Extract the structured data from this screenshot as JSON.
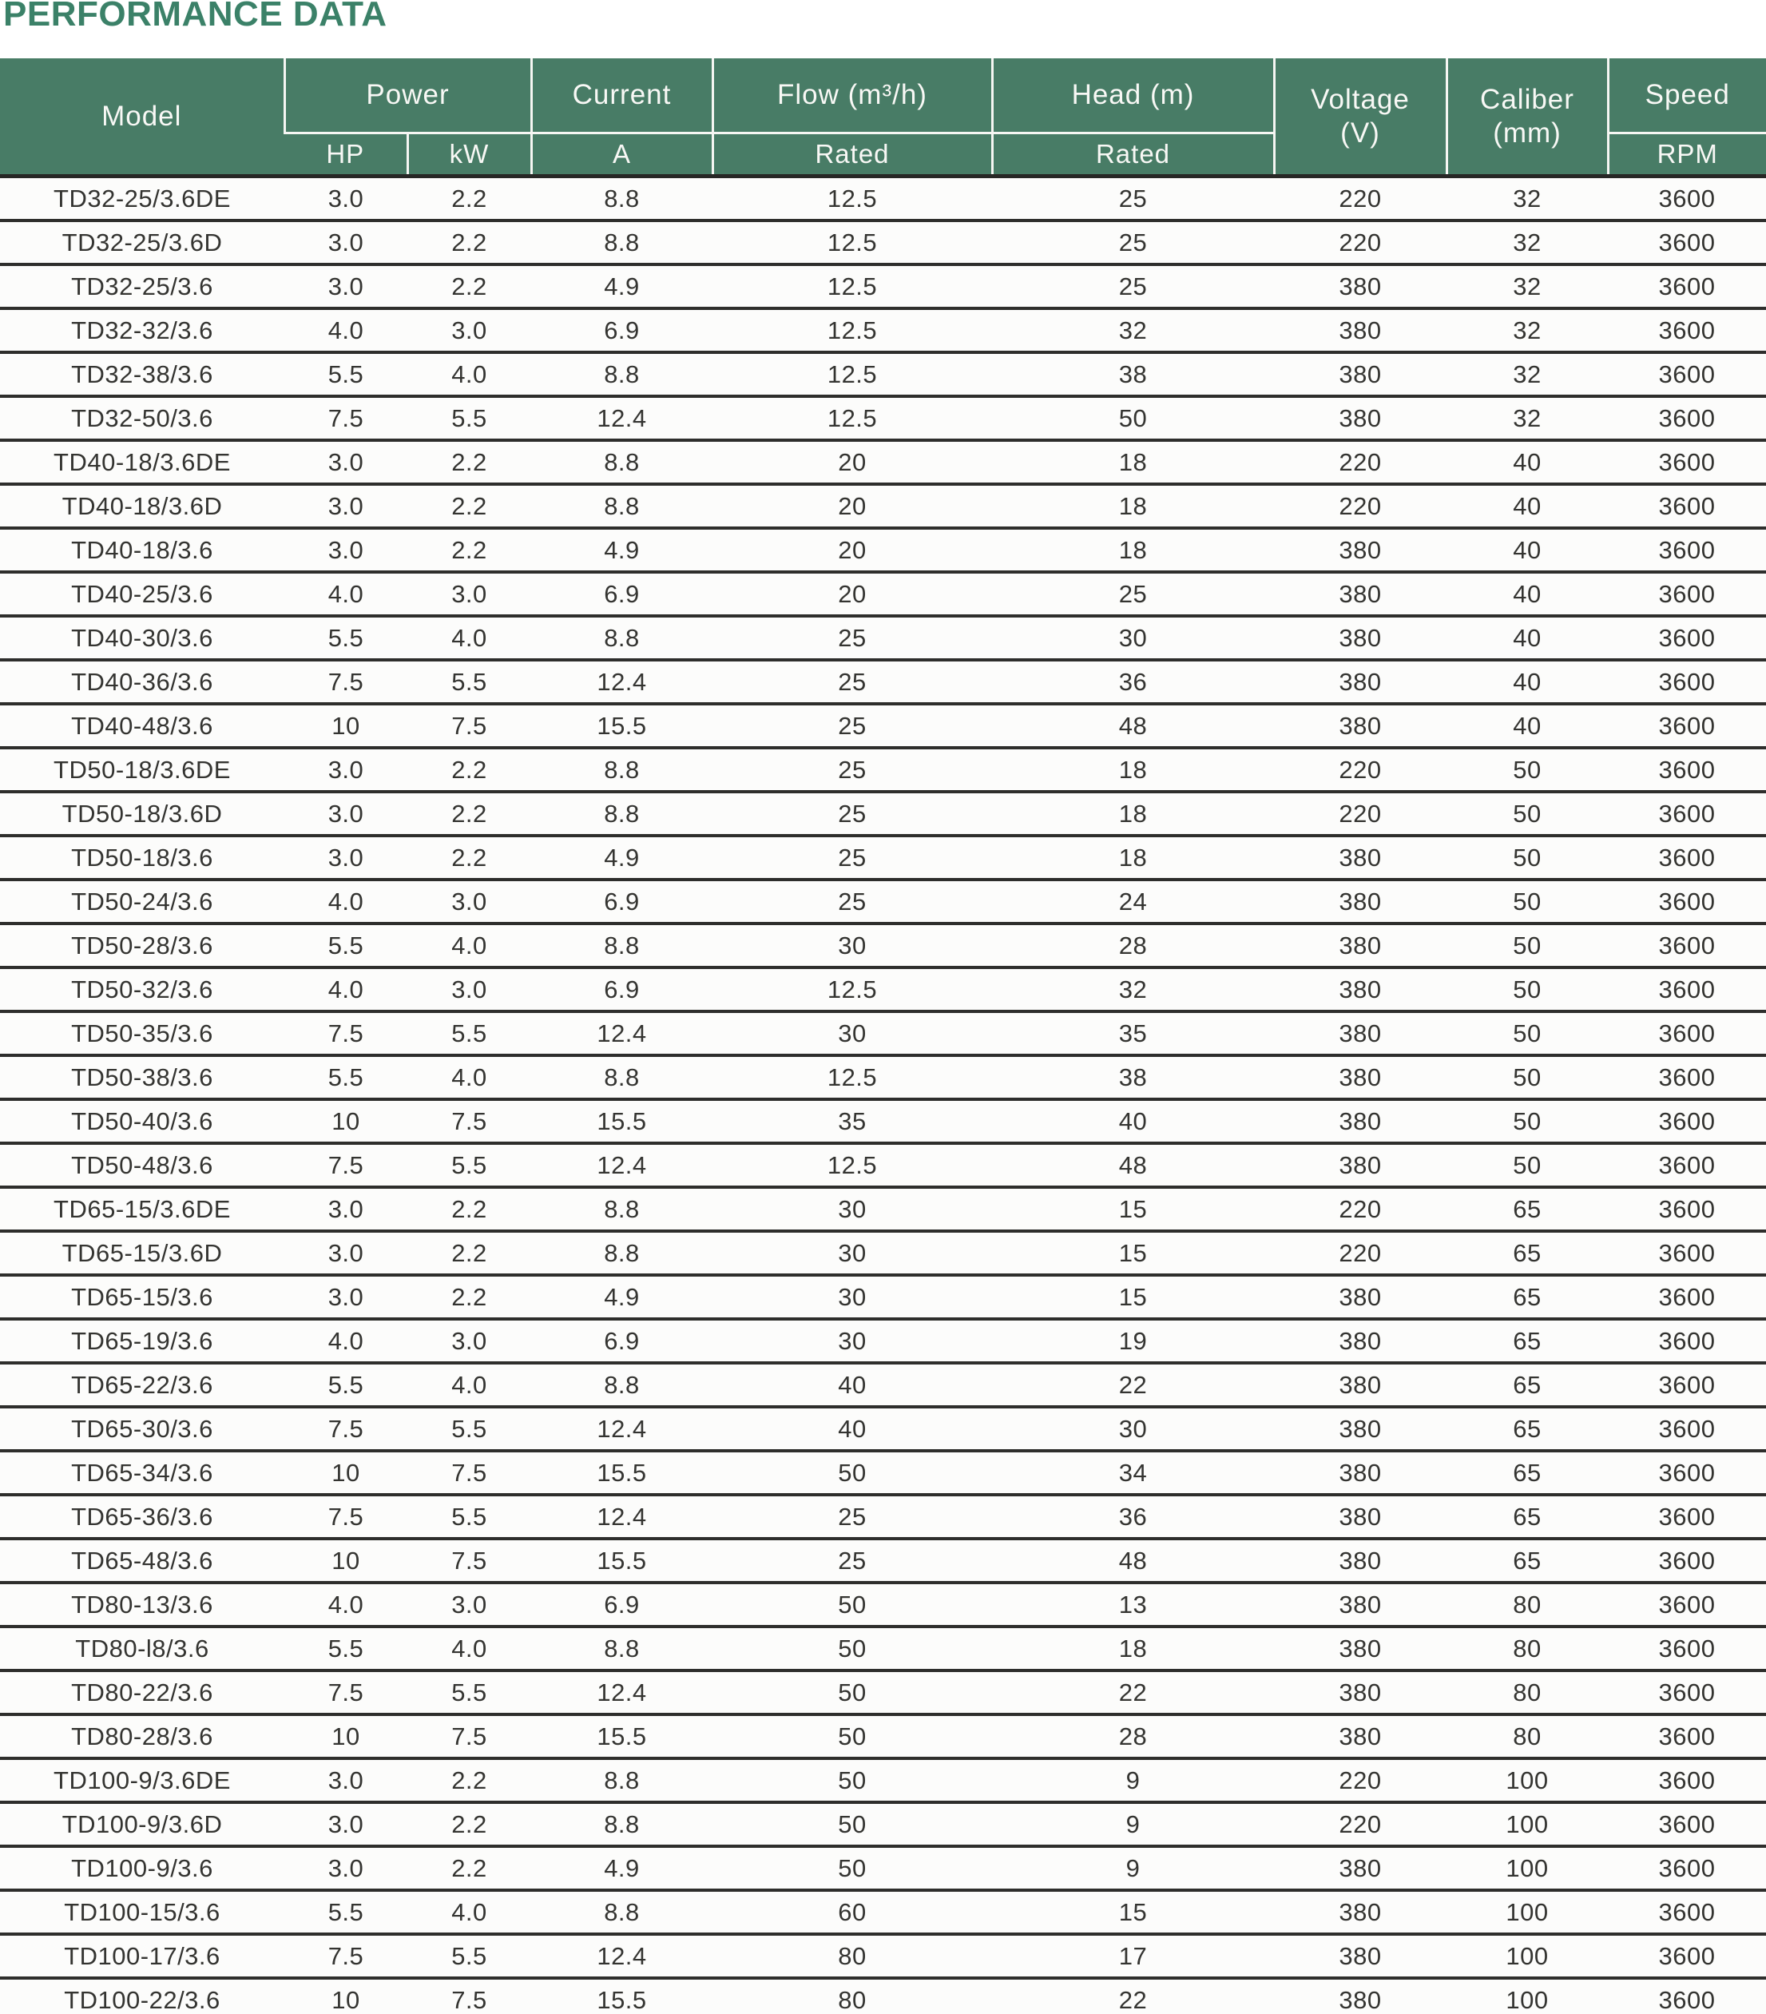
{
  "page": {
    "title": "PERFORMANCE DATA"
  },
  "colors": {
    "header_green": "#487c66",
    "title_green": "#3b8168",
    "row_divider_dark": "#2e2e2c",
    "header_text": "#f8f8f5",
    "body_text": "#343431"
  },
  "table": {
    "header": {
      "model": "Model",
      "power": "Power",
      "power_hp": "HP",
      "power_kw": "kW",
      "current": "Current",
      "current_a": "A",
      "flow": "Flow (m³/h)",
      "flow_rated": "Rated",
      "head": "Head (m)",
      "head_rated": "Rated",
      "voltage_line1": "Voltage",
      "voltage_line2": "(V)",
      "caliber_line1": "Caliber",
      "caliber_line2": "(mm)",
      "speed": "Speed",
      "speed_rpm": "RPM"
    },
    "columns": [
      "Model",
      "Power HP",
      "Power kW",
      "Current A",
      "Flow (m³/h) Rated",
      "Head (m) Rated",
      "Voltage (V)",
      "Caliber (mm)",
      "Speed RPM"
    ],
    "rows": [
      [
        "TD32-25/3.6DE",
        "3.0",
        "2.2",
        "8.8",
        "12.5",
        "25",
        "220",
        "32",
        "3600"
      ],
      [
        "TD32-25/3.6D",
        "3.0",
        "2.2",
        "8.8",
        "12.5",
        "25",
        "220",
        "32",
        "3600"
      ],
      [
        "TD32-25/3.6",
        "3.0",
        "2.2",
        "4.9",
        "12.5",
        "25",
        "380",
        "32",
        "3600"
      ],
      [
        "TD32-32/3.6",
        "4.0",
        "3.0",
        "6.9",
        "12.5",
        "32",
        "380",
        "32",
        "3600"
      ],
      [
        "TD32-38/3.6",
        "5.5",
        "4.0",
        "8.8",
        "12.5",
        "38",
        "380",
        "32",
        "3600"
      ],
      [
        "TD32-50/3.6",
        "7.5",
        "5.5",
        "12.4",
        "12.5",
        "50",
        "380",
        "32",
        "3600"
      ],
      [
        "TD40-18/3.6DE",
        "3.0",
        "2.2",
        "8.8",
        "20",
        "18",
        "220",
        "40",
        "3600"
      ],
      [
        "TD40-18/3.6D",
        "3.0",
        "2.2",
        "8.8",
        "20",
        "18",
        "220",
        "40",
        "3600"
      ],
      [
        "TD40-18/3.6",
        "3.0",
        "2.2",
        "4.9",
        "20",
        "18",
        "380",
        "40",
        "3600"
      ],
      [
        "TD40-25/3.6",
        "4.0",
        "3.0",
        "6.9",
        "20",
        "25",
        "380",
        "40",
        "3600"
      ],
      [
        "TD40-30/3.6",
        "5.5",
        "4.0",
        "8.8",
        "25",
        "30",
        "380",
        "40",
        "3600"
      ],
      [
        "TD40-36/3.6",
        "7.5",
        "5.5",
        "12.4",
        "25",
        "36",
        "380",
        "40",
        "3600"
      ],
      [
        "TD40-48/3.6",
        "10",
        "7.5",
        "15.5",
        "25",
        "48",
        "380",
        "40",
        "3600"
      ],
      [
        "TD50-18/3.6DE",
        "3.0",
        "2.2",
        "8.8",
        "25",
        "18",
        "220",
        "50",
        "3600"
      ],
      [
        "TD50-18/3.6D",
        "3.0",
        "2.2",
        "8.8",
        "25",
        "18",
        "220",
        "50",
        "3600"
      ],
      [
        "TD50-18/3.6",
        "3.0",
        "2.2",
        "4.9",
        "25",
        "18",
        "380",
        "50",
        "3600"
      ],
      [
        "TD50-24/3.6",
        "4.0",
        "3.0",
        "6.9",
        "25",
        "24",
        "380",
        "50",
        "3600"
      ],
      [
        "TD50-28/3.6",
        "5.5",
        "4.0",
        "8.8",
        "30",
        "28",
        "380",
        "50",
        "3600"
      ],
      [
        "TD50-32/3.6",
        "4.0",
        "3.0",
        "6.9",
        "12.5",
        "32",
        "380",
        "50",
        "3600"
      ],
      [
        "TD50-35/3.6",
        "7.5",
        "5.5",
        "12.4",
        "30",
        "35",
        "380",
        "50",
        "3600"
      ],
      [
        "TD50-38/3.6",
        "5.5",
        "4.0",
        "8.8",
        "12.5",
        "38",
        "380",
        "50",
        "3600"
      ],
      [
        "TD50-40/3.6",
        "10",
        "7.5",
        "15.5",
        "35",
        "40",
        "380",
        "50",
        "3600"
      ],
      [
        "TD50-48/3.6",
        "7.5",
        "5.5",
        "12.4",
        "12.5",
        "48",
        "380",
        "50",
        "3600"
      ],
      [
        "TD65-15/3.6DE",
        "3.0",
        "2.2",
        "8.8",
        "30",
        "15",
        "220",
        "65",
        "3600"
      ],
      [
        "TD65-15/3.6D",
        "3.0",
        "2.2",
        "8.8",
        "30",
        "15",
        "220",
        "65",
        "3600"
      ],
      [
        "TD65-15/3.6",
        "3.0",
        "2.2",
        "4.9",
        "30",
        "15",
        "380",
        "65",
        "3600"
      ],
      [
        "TD65-19/3.6",
        "4.0",
        "3.0",
        "6.9",
        "30",
        "19",
        "380",
        "65",
        "3600"
      ],
      [
        "TD65-22/3.6",
        "5.5",
        "4.0",
        "8.8",
        "40",
        "22",
        "380",
        "65",
        "3600"
      ],
      [
        "TD65-30/3.6",
        "7.5",
        "5.5",
        "12.4",
        "40",
        "30",
        "380",
        "65",
        "3600"
      ],
      [
        "TD65-34/3.6",
        "10",
        "7.5",
        "15.5",
        "50",
        "34",
        "380",
        "65",
        "3600"
      ],
      [
        "TD65-36/3.6",
        "7.5",
        "5.5",
        "12.4",
        "25",
        "36",
        "380",
        "65",
        "3600"
      ],
      [
        "TD65-48/3.6",
        "10",
        "7.5",
        "15.5",
        "25",
        "48",
        "380",
        "65",
        "3600"
      ],
      [
        "TD80-13/3.6",
        "4.0",
        "3.0",
        "6.9",
        "50",
        "13",
        "380",
        "80",
        "3600"
      ],
      [
        "TD80-l8/3.6",
        "5.5",
        "4.0",
        "8.8",
        "50",
        "18",
        "380",
        "80",
        "3600"
      ],
      [
        "TD80-22/3.6",
        "7.5",
        "5.5",
        "12.4",
        "50",
        "22",
        "380",
        "80",
        "3600"
      ],
      [
        "TD80-28/3.6",
        "10",
        "7.5",
        "15.5",
        "50",
        "28",
        "380",
        "80",
        "3600"
      ],
      [
        "TD100-9/3.6DE",
        "3.0",
        "2.2",
        "8.8",
        "50",
        "9",
        "220",
        "100",
        "3600"
      ],
      [
        "TD100-9/3.6D",
        "3.0",
        "2.2",
        "8.8",
        "50",
        "9",
        "220",
        "100",
        "3600"
      ],
      [
        "TD100-9/3.6",
        "3.0",
        "2.2",
        "4.9",
        "50",
        "9",
        "380",
        "100",
        "3600"
      ],
      [
        "TD100-15/3.6",
        "5.5",
        "4.0",
        "8.8",
        "60",
        "15",
        "380",
        "100",
        "3600"
      ],
      [
        "TD100-17/3.6",
        "7.5",
        "5.5",
        "12.4",
        "80",
        "17",
        "380",
        "100",
        "3600"
      ],
      [
        "TD100-22/3.6",
        "10",
        "7.5",
        "15.5",
        "80",
        "22",
        "380",
        "100",
        "3600"
      ]
    ]
  }
}
